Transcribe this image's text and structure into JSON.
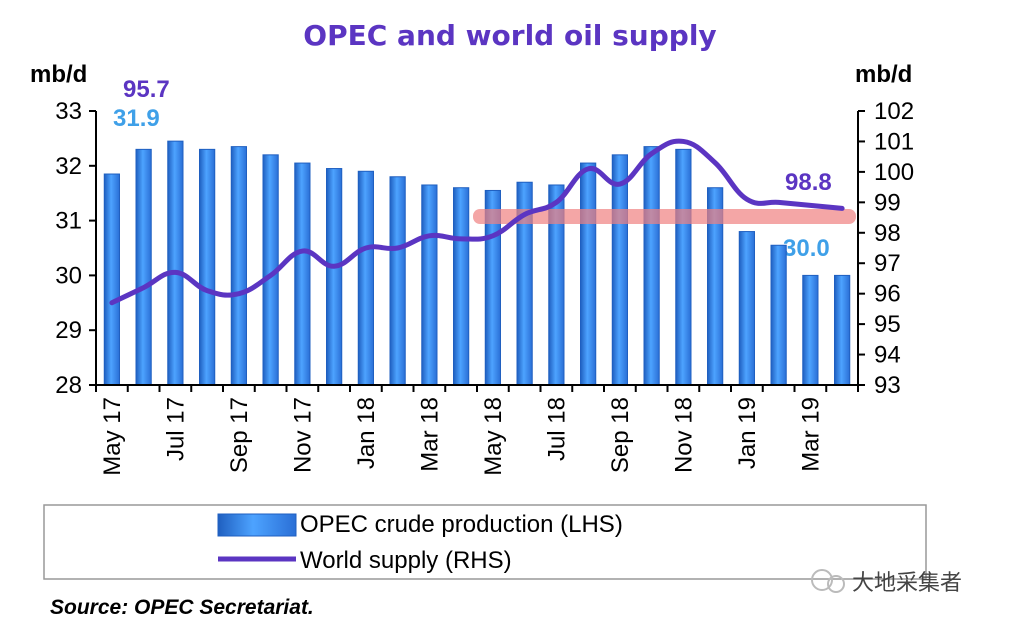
{
  "chart_data": {
    "type": "bar+line",
    "title": "OPEC and world oil supply",
    "ylabel_left": "mb/d",
    "ylabel_right": "mb/d",
    "ylim_left": [
      28,
      33
    ],
    "ylim_right": [
      93,
      102
    ],
    "yticks_left": [
      "28",
      "29",
      "30",
      "31",
      "32",
      "33"
    ],
    "yticks_right": [
      "93",
      "94",
      "95",
      "96",
      "97",
      "98",
      "99",
      "100",
      "101",
      "102"
    ],
    "categories": [
      "May 17",
      "Jun 17",
      "Jul 17",
      "Aug 17",
      "Sep 17",
      "Oct 17",
      "Nov 17",
      "Dec 17",
      "Jan 18",
      "Feb 18",
      "Mar 18",
      "Apr 18",
      "May 18",
      "Jun 18",
      "Jul 18",
      "Aug 18",
      "Sep 18",
      "Oct 18",
      "Nov 18",
      "Dec 18",
      "Jan 19",
      "Feb 19",
      "Mar 19",
      "Apr 19"
    ],
    "xtick_labels": [
      "May 17",
      "Jul 17",
      "Sep 17",
      "Nov 17",
      "Jan 18",
      "Mar 18",
      "May 18",
      "Jul 18",
      "Sep 18",
      "Nov 18",
      "Jan 19",
      "Mar 19"
    ],
    "series": [
      {
        "name": "OPEC crude production (LHS)",
        "type": "bar",
        "axis": "left",
        "values": [
          31.85,
          32.3,
          32.45,
          32.3,
          32.35,
          32.2,
          32.05,
          31.95,
          31.9,
          31.8,
          31.65,
          31.6,
          31.55,
          31.7,
          31.65,
          32.05,
          32.2,
          32.35,
          32.3,
          31.6,
          30.8,
          30.55,
          30.0,
          30.0
        ]
      },
      {
        "name": "World supply (RHS)",
        "type": "line",
        "axis": "right",
        "values": [
          95.7,
          96.2,
          96.7,
          96.1,
          96.0,
          96.6,
          97.4,
          96.9,
          97.5,
          97.5,
          97.9,
          97.8,
          97.9,
          98.6,
          99.0,
          100.1,
          99.6,
          100.6,
          101.0,
          100.3,
          99.1,
          99.0,
          98.9,
          98.8
        ]
      }
    ],
    "annotations": {
      "start_supply": "95.7",
      "start_opec": "31.9",
      "end_supply": "98.8",
      "end_opec": "30.0"
    },
    "legend_position": "bottom",
    "grid": false
  },
  "source": "Source: OPEC Secretariat.",
  "watermark": "大地采集者",
  "colors": {
    "bar": "#3f8ef0",
    "bar_dark": "#1f5fc0",
    "line": "#5b35c2",
    "title": "#5b35c2",
    "label_blue": "#3fa0e8",
    "highlight": "#f08080"
  }
}
